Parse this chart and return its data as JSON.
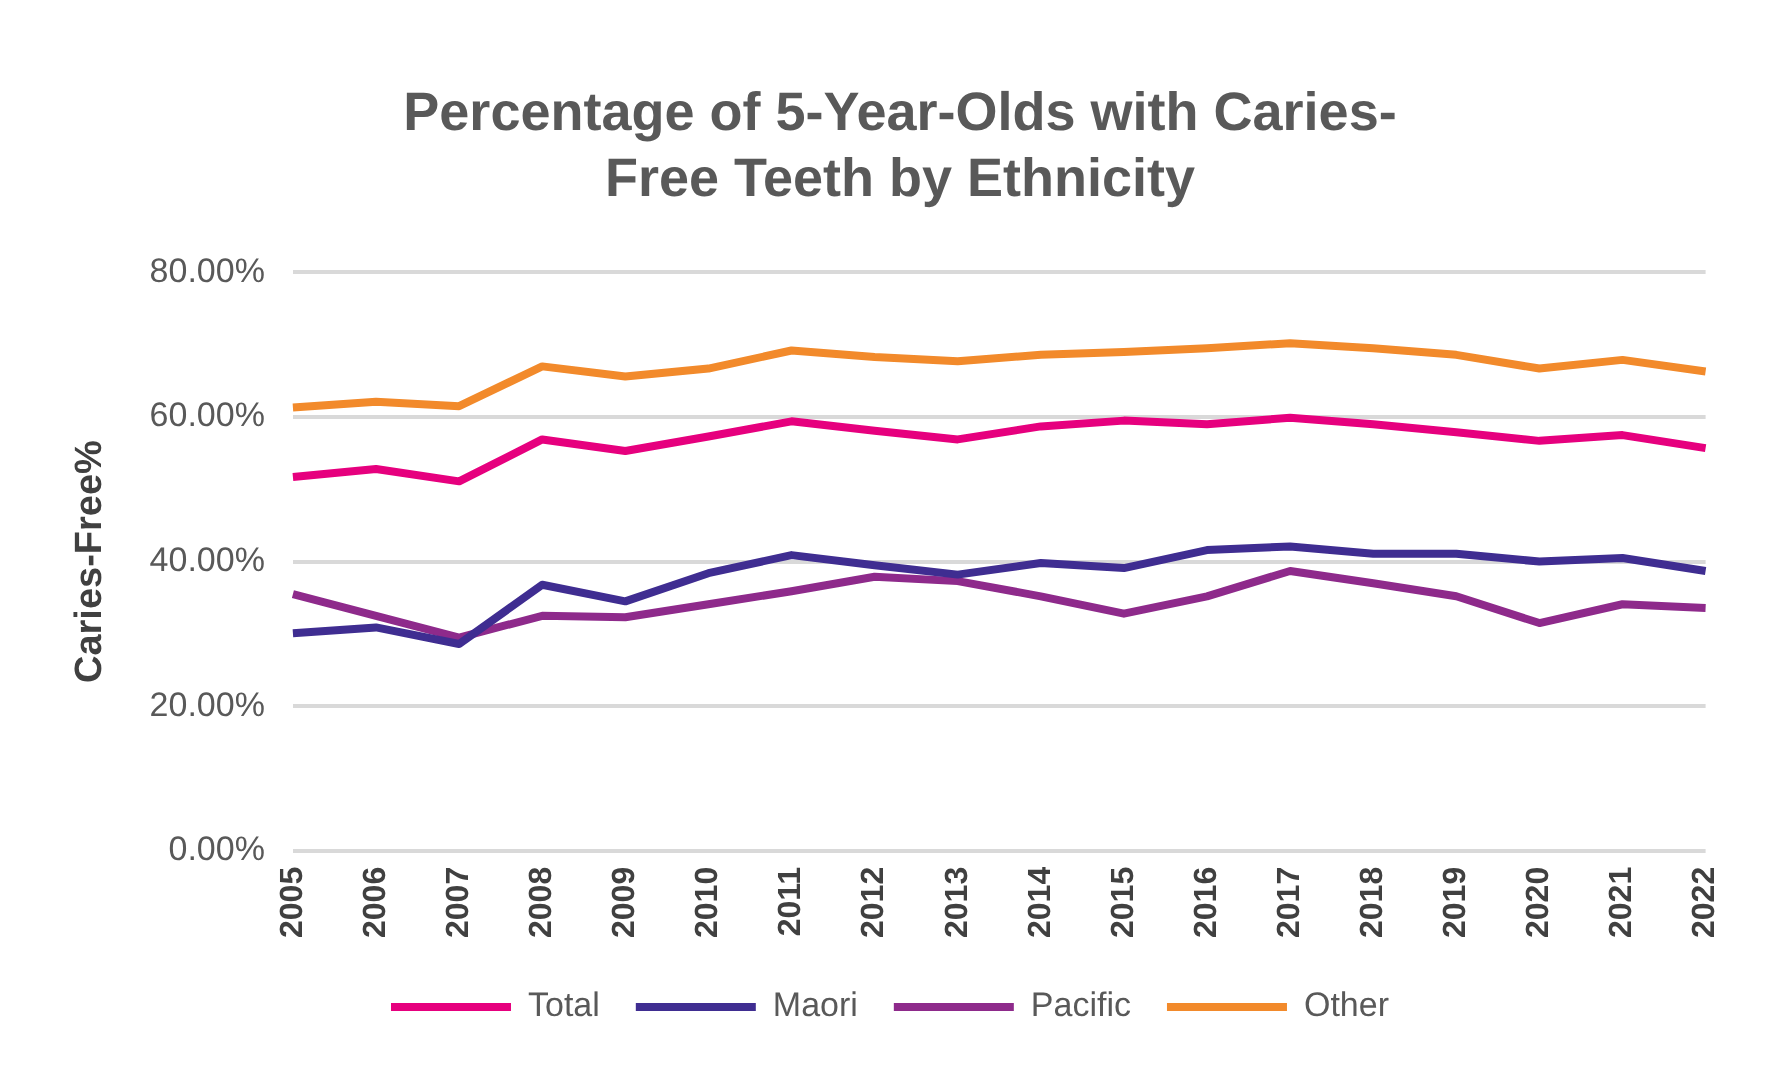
{
  "chart_data": {
    "type": "line",
    "title": "Percentage of 5-Year-Olds with Caries-Free Teeth by Ethnicity",
    "ylabel": "Caries-Free%",
    "categories": [
      "2005",
      "2006",
      "2007",
      "2008",
      "2009",
      "2010",
      "2011",
      "2012",
      "2013",
      "2014",
      "2015",
      "2016",
      "2017",
      "2018",
      "2019",
      "2020",
      "2021",
      "2022"
    ],
    "series": [
      {
        "name": "Total",
        "color": "#e6007e",
        "values": [
          51.7,
          52.8,
          51.1,
          56.9,
          55.3,
          57.3,
          59.4,
          58.1,
          56.9,
          58.7,
          59.5,
          59.0,
          59.9,
          59.0,
          57.9,
          56.7,
          57.5,
          55.7
        ]
      },
      {
        "name": "Maori",
        "color": "#3f2d91",
        "values": [
          30.1,
          30.9,
          28.6,
          36.8,
          34.5,
          38.4,
          40.9,
          39.5,
          38.2,
          39.8,
          39.1,
          41.6,
          42.1,
          41.1,
          41.1,
          40.0,
          40.5,
          38.7
        ]
      },
      {
        "name": "Pacific",
        "color": "#8e2a8b",
        "values": [
          35.5,
          32.5,
          29.5,
          32.5,
          32.3,
          34.1,
          35.9,
          37.9,
          37.3,
          35.2,
          32.8,
          35.2,
          38.7,
          37.0,
          35.2,
          31.5,
          34.1,
          33.6
        ]
      },
      {
        "name": "Other",
        "color": "#f28a2b",
        "values": [
          61.3,
          62.1,
          61.5,
          67.0,
          65.6,
          66.7,
          69.2,
          68.3,
          67.7,
          68.6,
          69.0,
          69.5,
          70.2,
          69.5,
          68.6,
          66.7,
          67.9,
          66.3
        ]
      }
    ],
    "ylim": [
      0,
      80
    ],
    "yticks": [
      {
        "value": 0,
        "label": "0.00%"
      },
      {
        "value": 20,
        "label": "20.00%"
      },
      {
        "value": 40,
        "label": "40.00%"
      },
      {
        "value": 60,
        "label": "60.00%"
      },
      {
        "value": 80,
        "label": "80.00%"
      }
    ],
    "grid": "y",
    "legend": "bottom",
    "marker": "none",
    "line_style": "solid"
  }
}
